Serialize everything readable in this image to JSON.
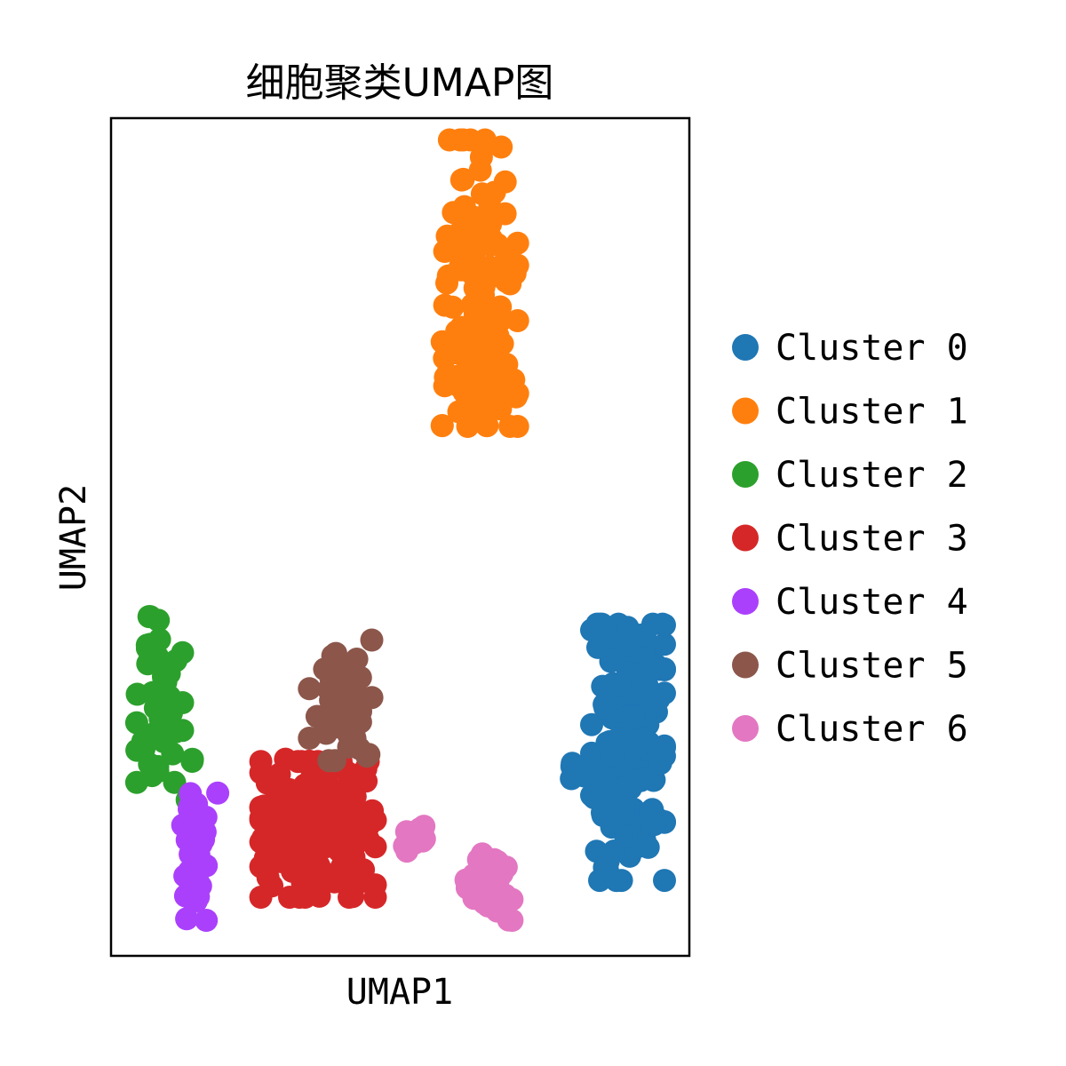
{
  "chart_data": {
    "type": "scatter",
    "title": "细胞聚类UMAP图",
    "xlabel": "UMAP1",
    "ylabel": "UMAP2",
    "xlim": [
      0,
      10
    ],
    "ylim": [
      0,
      10
    ],
    "ticks_visible": false,
    "grid": false,
    "legend_position": "right",
    "series": [
      {
        "name": "Cluster 0",
        "color": "#1f77b4",
        "clusters": [
          {
            "cx": 8.94,
            "cy": 2.43,
            "sx": 0.35,
            "sy": 0.85,
            "n": 140,
            "seed": 11
          },
          {
            "cx": 8.95,
            "cy": 3.38,
            "sx": 0.18,
            "sy": 0.3,
            "n": 30,
            "seed": 12
          },
          {
            "cx": 8.07,
            "cy": 2.19,
            "sx": 0.14,
            "sy": 0.06,
            "n": 8,
            "seed": 13
          }
        ]
      },
      {
        "name": "Cluster 1",
        "color": "#ff7f0e",
        "clusters": [
          {
            "cx": 6.4,
            "cy": 8.03,
            "sx": 0.35,
            "sy": 0.95,
            "n": 120,
            "seed": 21
          },
          {
            "cx": 6.23,
            "cy": 7.05,
            "sx": 0.28,
            "sy": 0.4,
            "n": 40,
            "seed": 22
          }
        ]
      },
      {
        "name": "Cluster 2",
        "color": "#2ca02c",
        "clusters": [
          {
            "cx": 0.84,
            "cy": 3.06,
            "sx": 0.22,
            "sy": 0.55,
            "n": 55,
            "seed": 31
          },
          {
            "cx": 1.38,
            "cy": 2.15,
            "sx": 0.06,
            "sy": 0.16,
            "n": 3,
            "seed": 32
          }
        ]
      },
      {
        "name": "Cluster 3",
        "color": "#d62728",
        "clusters": [
          {
            "cx": 3.58,
            "cy": 1.51,
            "sx": 0.55,
            "sy": 0.45,
            "n": 170,
            "seed": 41
          },
          {
            "cx": 3.15,
            "cy": 2.2,
            "sx": 0.25,
            "sy": 0.12,
            "n": 8,
            "seed": 42
          }
        ]
      },
      {
        "name": "Cluster 4",
        "color": "#aa40fc",
        "clusters": [
          {
            "cx": 1.43,
            "cy": 1.18,
            "sx": 0.12,
            "sy": 0.42,
            "n": 40,
            "seed": 51
          },
          {
            "cx": 1.81,
            "cy": 1.93,
            "sx": 0.02,
            "sy": 0.02,
            "n": 1,
            "seed": 52
          }
        ]
      },
      {
        "name": "Cluster 5",
        "color": "#8c564b",
        "clusters": [
          {
            "cx": 3.97,
            "cy": 3.05,
            "sx": 0.3,
            "sy": 0.4,
            "n": 55,
            "seed": 61
          }
        ]
      },
      {
        "name": "Cluster 6",
        "color": "#e377c2",
        "clusters": [
          {
            "cx": 6.52,
            "cy": 0.82,
            "sx": 0.23,
            "sy": 0.22,
            "n": 40,
            "seed": 71
          },
          {
            "cx": 5.27,
            "cy": 1.43,
            "sx": 0.14,
            "sy": 0.1,
            "n": 14,
            "seed": 72
          }
        ]
      }
    ]
  }
}
